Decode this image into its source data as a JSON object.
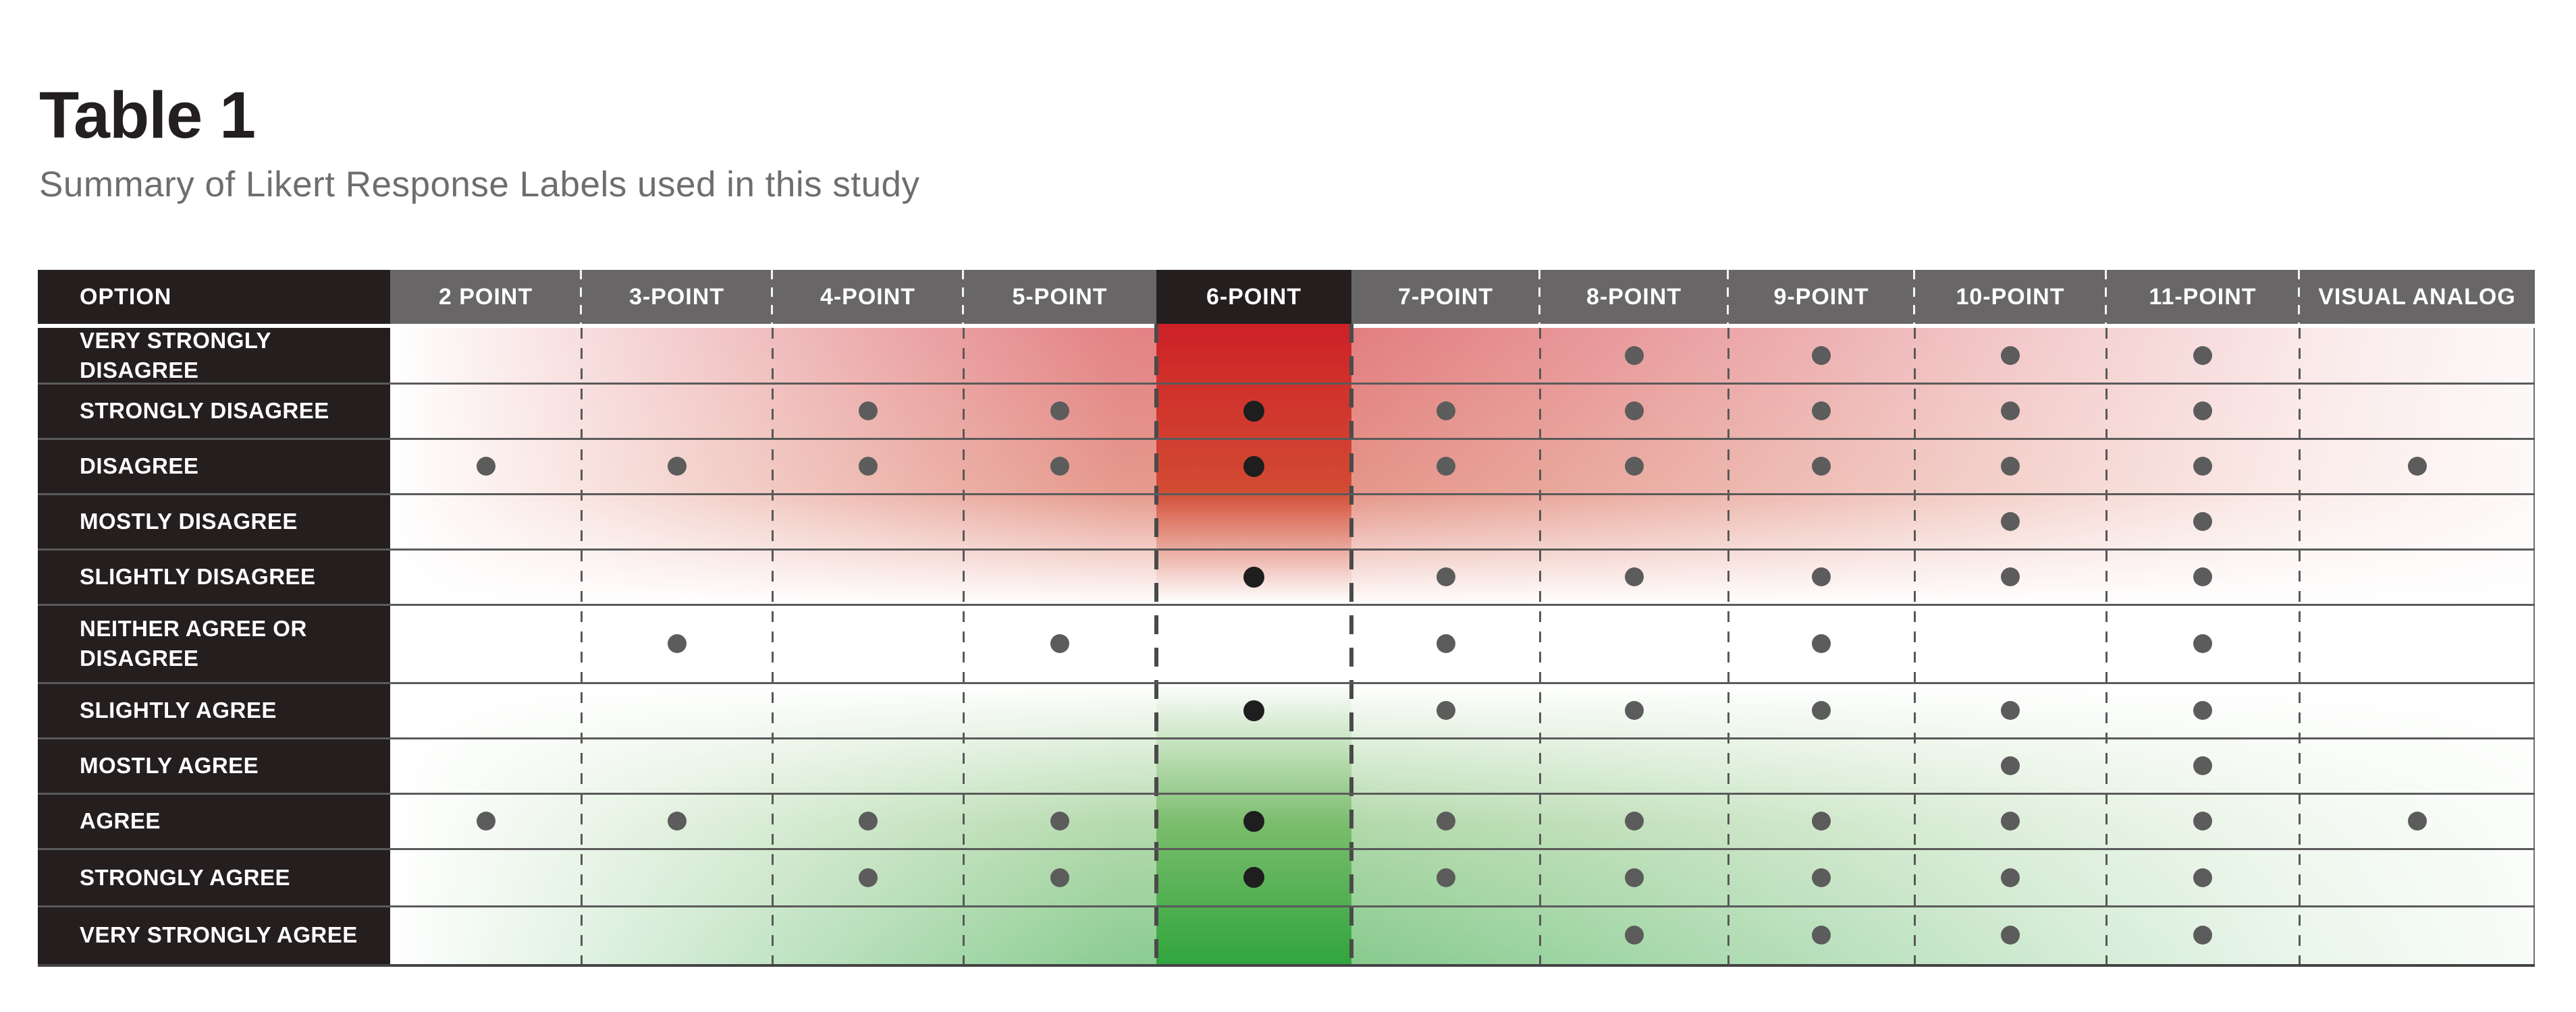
{
  "title": "Table 1",
  "subtitle": "Summary of Likert Response Labels used in this study",
  "chart_data": {
    "type": "table",
    "title": "Table 1",
    "subtitle": "Summary of Likert Response Labels used in this study",
    "option_header": "OPTION",
    "columns": [
      "2 POINT",
      "3-POINT",
      "4-POINT",
      "5-POINT",
      "6-POINT",
      "7-POINT",
      "8-POINT",
      "9-POINT",
      "10-POINT",
      "11-POINT",
      "VISUAL ANALOG"
    ],
    "highlight_column": "6-POINT",
    "mark_meaning": "dot indicates the response label is used in that scale",
    "rows": [
      {
        "label": "VERY STRONGLY DISAGREE",
        "marks": [
          0,
          0,
          0,
          0,
          0,
          0,
          1,
          1,
          1,
          1,
          0
        ]
      },
      {
        "label": "STRONGLY DISAGREE",
        "marks": [
          0,
          0,
          1,
          1,
          1,
          1,
          1,
          1,
          1,
          1,
          0
        ]
      },
      {
        "label": "DISAGREE",
        "marks": [
          1,
          1,
          1,
          1,
          1,
          1,
          1,
          1,
          1,
          1,
          1
        ]
      },
      {
        "label": "MOSTLY DISAGREE",
        "marks": [
          0,
          0,
          0,
          0,
          0,
          0,
          0,
          0,
          1,
          1,
          0
        ]
      },
      {
        "label": "SLIGHTLY DISAGREE",
        "marks": [
          0,
          0,
          0,
          0,
          1,
          1,
          1,
          1,
          1,
          1,
          0
        ]
      },
      {
        "label": "NEITHER AGREE OR DISAGREE",
        "marks": [
          0,
          1,
          0,
          1,
          0,
          1,
          0,
          1,
          0,
          1,
          0
        ]
      },
      {
        "label": "SLIGHTLY AGREE",
        "marks": [
          0,
          0,
          0,
          0,
          1,
          1,
          1,
          1,
          1,
          1,
          0
        ]
      },
      {
        "label": "MOSTLY AGREE",
        "marks": [
          0,
          0,
          0,
          0,
          0,
          0,
          0,
          0,
          1,
          1,
          0
        ]
      },
      {
        "label": "AGREE",
        "marks": [
          1,
          1,
          1,
          1,
          1,
          1,
          1,
          1,
          1,
          1,
          1
        ]
      },
      {
        "label": "STRONGLY AGREE",
        "marks": [
          0,
          0,
          1,
          1,
          1,
          1,
          1,
          1,
          1,
          1,
          0
        ]
      },
      {
        "label": "VERY STRONGLY AGREE",
        "marks": [
          0,
          0,
          0,
          0,
          0,
          0,
          1,
          1,
          1,
          1,
          0
        ]
      }
    ]
  },
  "colors": {
    "dark_header_bg": "#241e1f",
    "gray_header_bg": "#696667",
    "header_text": "#ffffff",
    "red_peak": "#ce2127",
    "red_mid": "#d24b33",
    "green_mid": "#7bbd6d",
    "green_peak": "#31a53d",
    "dot_gray": "#5c5c5c",
    "dot_black": "#1e1e1e",
    "separator_gray": "#5a5a5a",
    "bottom_border": "#434343",
    "title_color": "#231f1f",
    "subtitle_color": "#6e6e6e"
  }
}
